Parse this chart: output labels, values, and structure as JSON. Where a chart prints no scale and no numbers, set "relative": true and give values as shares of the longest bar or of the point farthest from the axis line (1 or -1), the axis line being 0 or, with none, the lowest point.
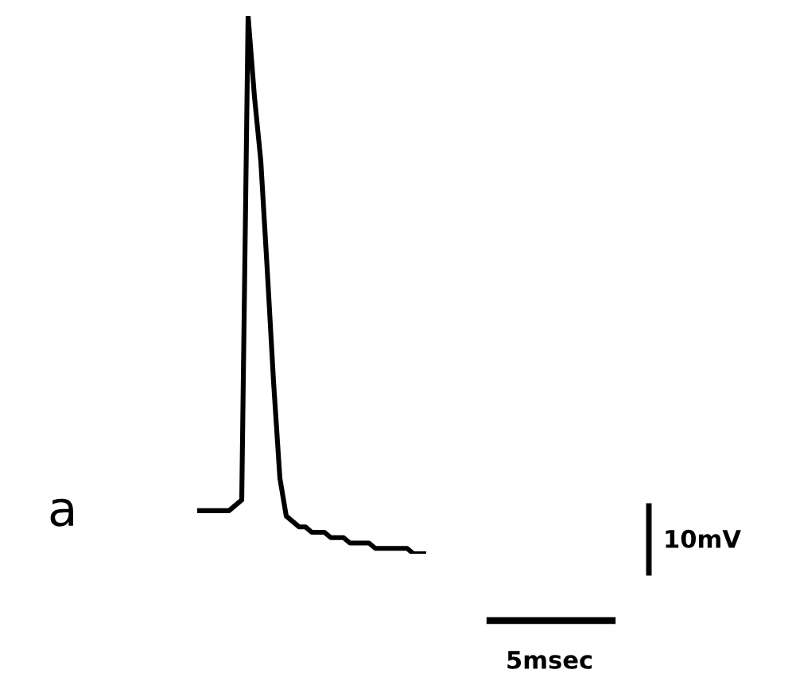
{
  "chart_data": {
    "type": "line",
    "relative": true,
    "categories": [
      null,
      null,
      null,
      null,
      null,
      null,
      null,
      null,
      null,
      null,
      null,
      null,
      null,
      null,
      null,
      null,
      null,
      null,
      null,
      null,
      null,
      null,
      null,
      null,
      null,
      null,
      null,
      null,
      null,
      null,
      null,
      null,
      null,
      null,
      null,
      null,
      null
    ],
    "series": [
      {
        "color": "#000000",
        "values": [
          0.08,
          0.08,
          0.08,
          0.08,
          0.08,
          0.08,
          0.09,
          0.1,
          1,
          0.85,
          0.73,
          0.53,
          0.32,
          0.14,
          0.07,
          0.06,
          0.05,
          0.05,
          0.04,
          0.04,
          0.04,
          0.03,
          0.03,
          0.03,
          0.02,
          0.02,
          0.02,
          0.02,
          0.01,
          0.01,
          0.01,
          0.01,
          0.01,
          0.01,
          0,
          0,
          0
        ]
      }
    ],
    "annotations": [
      "a",
      "10mV",
      "5msec"
    ]
  }
}
